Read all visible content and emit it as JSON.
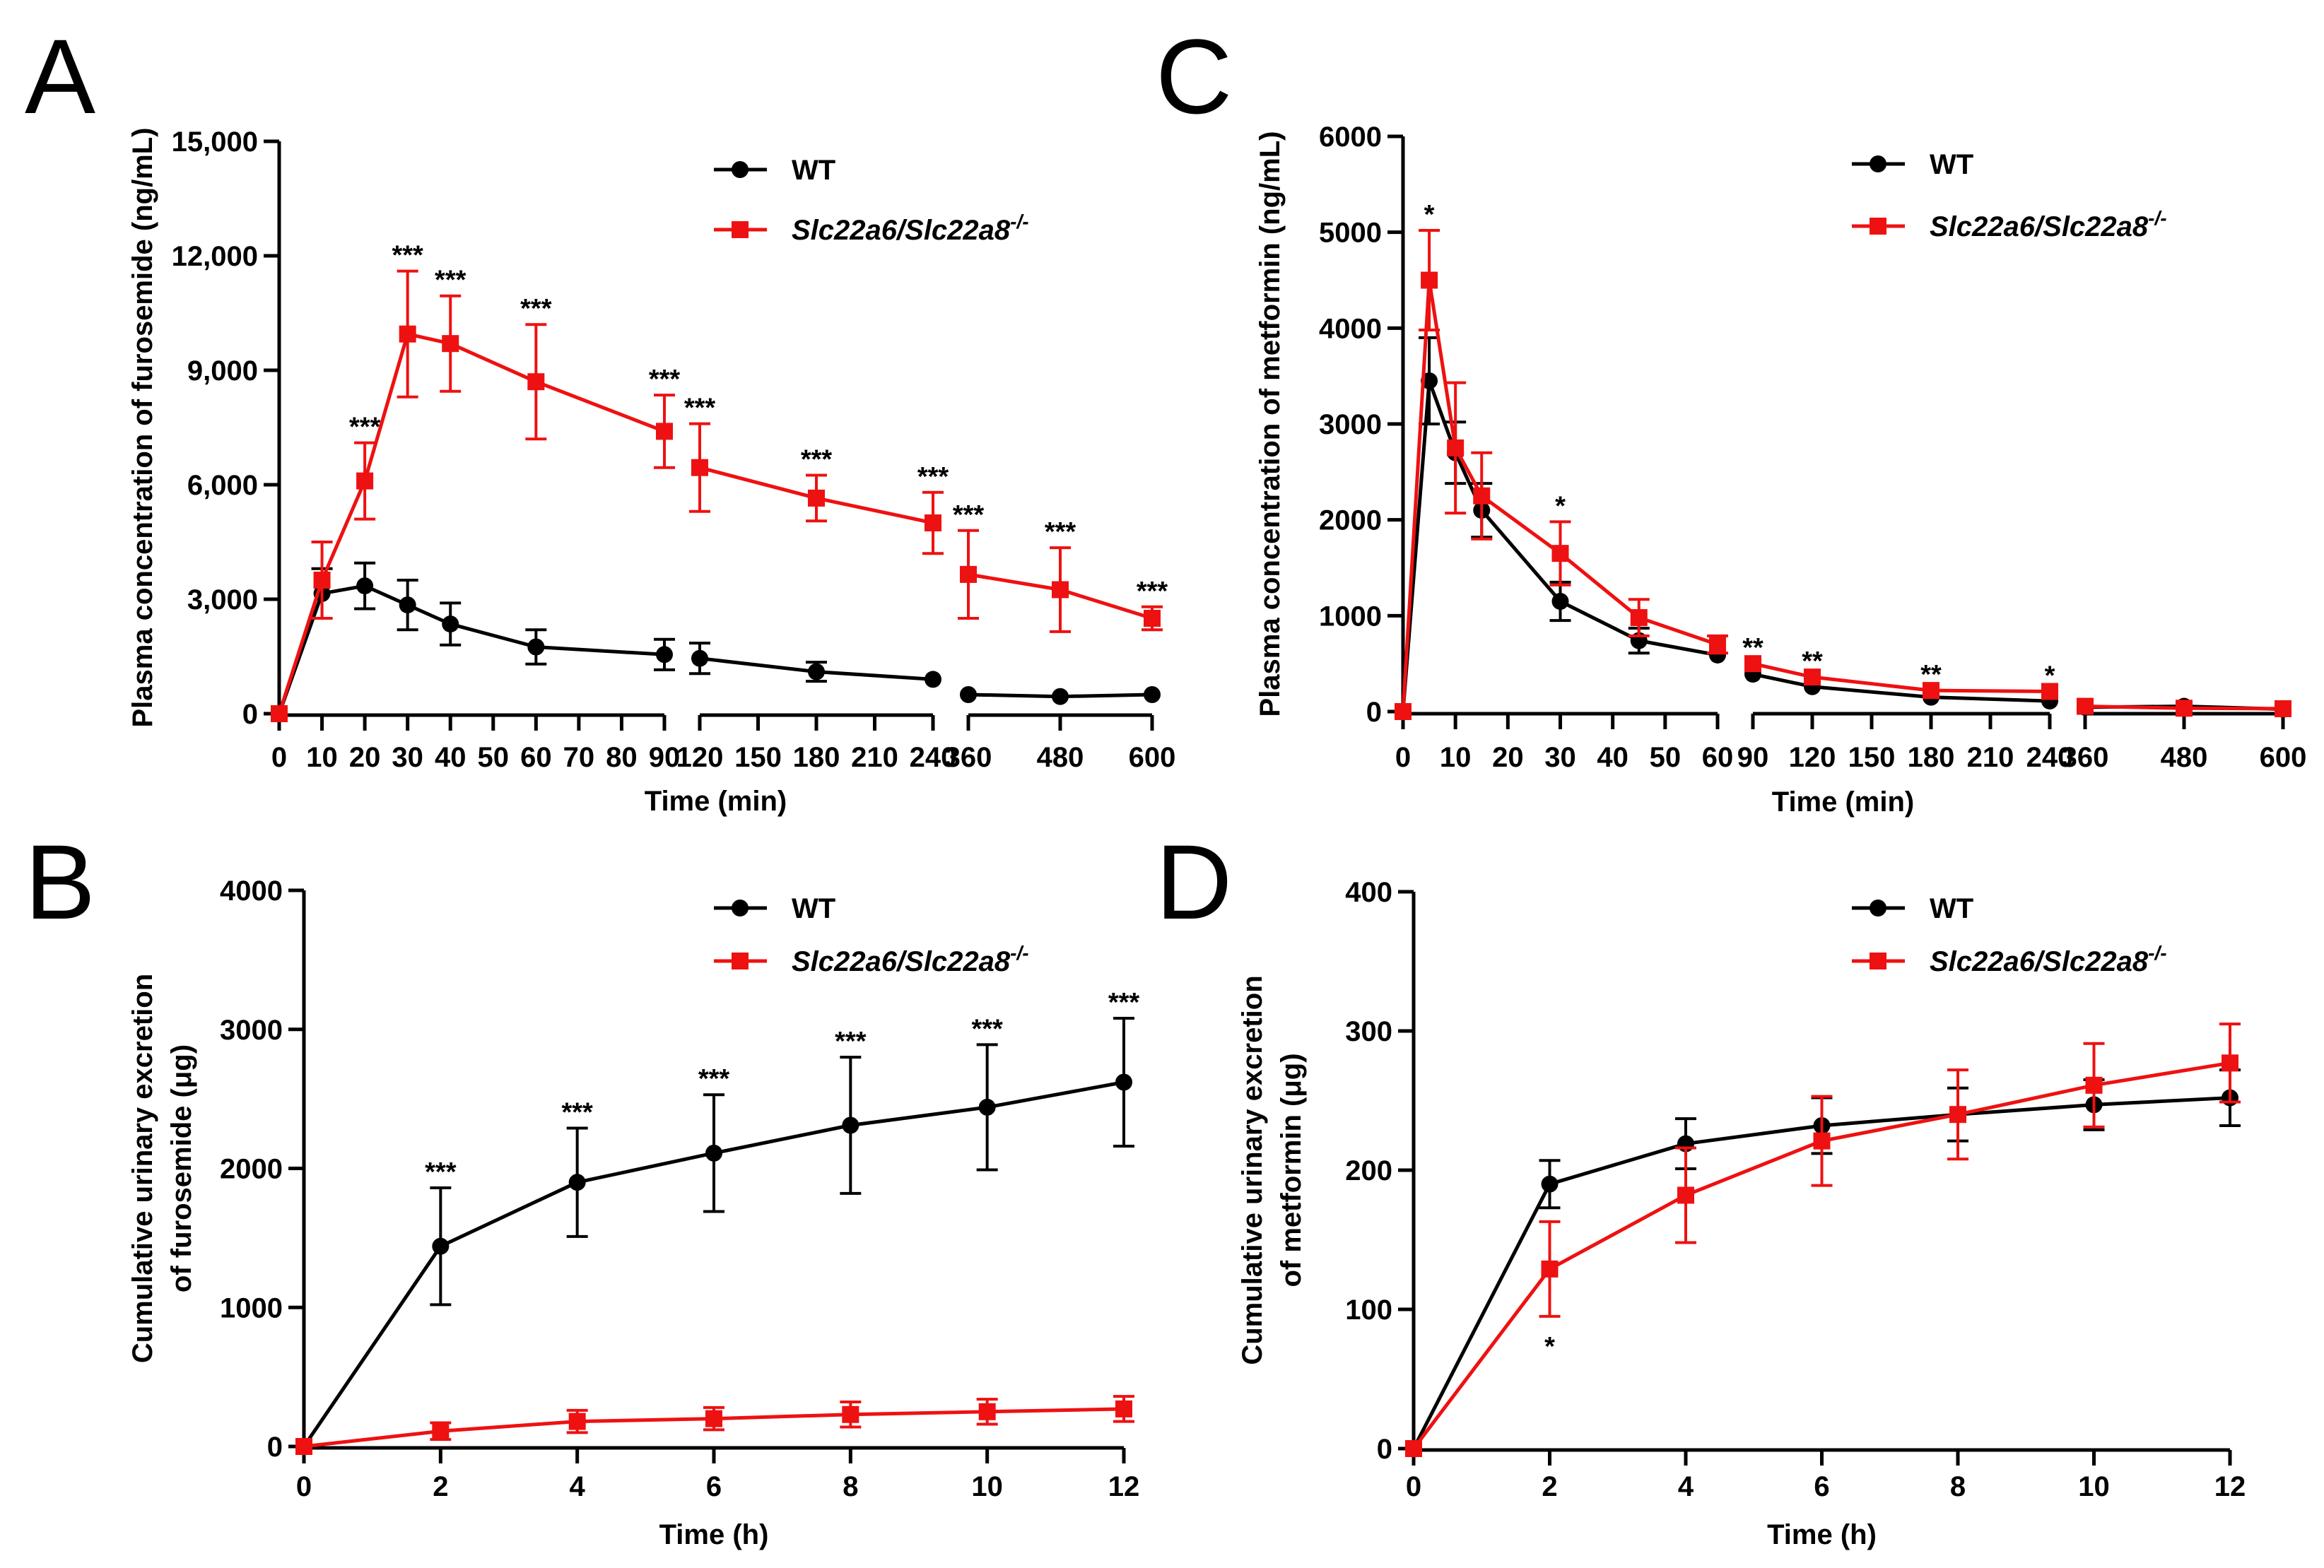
{
  "colors": {
    "wt": "#000000",
    "ko": "#ee1111",
    "axis": "#000000"
  },
  "chart_data": [
    {
      "panel": "A",
      "type": "line",
      "xlabel": "Time (min)",
      "ylabel": "Plasma concentration of furosemide (ng/mL)",
      "ylim": [
        0,
        15000
      ],
      "ytick_labels": [
        "0",
        "3,000",
        "6,000",
        "9,000",
        "12,000",
        "15,000"
      ],
      "segments": [
        {
          "xlim": [
            0,
            90
          ],
          "tick_labels": [
            "0",
            "10",
            "20",
            "30",
            "40",
            "50",
            "60",
            "70",
            "80",
            "90"
          ]
        },
        {
          "xlim": [
            120,
            240
          ],
          "tick_labels": [
            "120",
            "150",
            "180",
            "210",
            "240"
          ]
        },
        {
          "xlim": [
            360,
            600
          ],
          "tick_labels": [
            "360",
            "480",
            "600"
          ]
        }
      ],
      "legend": [
        "WT",
        "Slc22a6/Slc22a8",
        "-/-"
      ],
      "series": [
        {
          "name": "WT",
          "color_key": "wt",
          "marker": "circle",
          "x": [
            0,
            10,
            20,
            30,
            40,
            60,
            90,
            120,
            180,
            240,
            360,
            480,
            600
          ],
          "values": [
            0,
            3150,
            3350,
            2850,
            2350,
            1750,
            1550,
            1450,
            1100,
            900,
            500,
            450,
            500
          ],
          "err": [
            0,
            650,
            600,
            650,
            550,
            450,
            400,
            400,
            250,
            0,
            0,
            0,
            0
          ]
        },
        {
          "name": "Slc22a6/Slc22a8-/-",
          "color_key": "ko",
          "marker": "square",
          "x": [
            0,
            10,
            20,
            30,
            40,
            60,
            90,
            120,
            180,
            240,
            360,
            480,
            600
          ],
          "values": [
            0,
            3500,
            6100,
            9950,
            9700,
            8700,
            7400,
            6450,
            5650,
            5000,
            3650,
            3250,
            2500
          ],
          "err": [
            0,
            1000,
            1000,
            1650,
            1250,
            1500,
            950,
            1150,
            600,
            800,
            1150,
            1100,
            300
          ]
        }
      ],
      "annotations": [
        {
          "x": 20,
          "text": "***"
        },
        {
          "x": 30,
          "text": "***"
        },
        {
          "x": 40,
          "text": "***"
        },
        {
          "x": 60,
          "text": "***"
        },
        {
          "x": 90,
          "text": "***"
        },
        {
          "x": 120,
          "text": "***"
        },
        {
          "x": 180,
          "text": "***"
        },
        {
          "x": 240,
          "text": "***"
        },
        {
          "x": 360,
          "text": "***"
        },
        {
          "x": 480,
          "text": "***"
        },
        {
          "x": 600,
          "text": "***"
        }
      ]
    },
    {
      "panel": "B",
      "type": "line",
      "xlabel": "Time (h)",
      "ylabel_lines": [
        "Cumulative urinary excretion",
        "of furosemide (μg)"
      ],
      "ylim": [
        0,
        4000
      ],
      "ytick_labels": [
        "0",
        "1000",
        "2000",
        "3000",
        "4000"
      ],
      "segments": [
        {
          "xlim": [
            0,
            12
          ],
          "tick_labels": [
            "0",
            "2",
            "4",
            "6",
            "8",
            "10",
            "12"
          ]
        }
      ],
      "legend": [
        "WT",
        "Slc22a6/Slc22a8",
        "-/-"
      ],
      "series": [
        {
          "name": "WT",
          "color_key": "wt",
          "marker": "circle",
          "x": [
            0,
            2,
            4,
            6,
            8,
            10,
            12
          ],
          "values": [
            0,
            1440,
            1900,
            2110,
            2310,
            2440,
            2620
          ],
          "err": [
            0,
            420,
            390,
            420,
            490,
            450,
            460
          ]
        },
        {
          "name": "Slc22a6/Slc22a8-/-",
          "color_key": "ko",
          "marker": "square",
          "x": [
            0,
            2,
            4,
            6,
            8,
            10,
            12
          ],
          "values": [
            0,
            110,
            180,
            200,
            230,
            250,
            270
          ],
          "err": [
            0,
            60,
            80,
            80,
            90,
            90,
            90
          ]
        }
      ],
      "annotations": [
        {
          "x": 2,
          "text": "***"
        },
        {
          "x": 4,
          "text": "***"
        },
        {
          "x": 6,
          "text": "***"
        },
        {
          "x": 8,
          "text": "***"
        },
        {
          "x": 10,
          "text": "***"
        },
        {
          "x": 12,
          "text": "***"
        }
      ]
    },
    {
      "panel": "C",
      "type": "line",
      "xlabel": "Time (min)",
      "ylabel": "Plasma concentration of metformin (ng/mL)",
      "ylim": [
        0,
        6000
      ],
      "ytick_labels": [
        "0",
        "1000",
        "2000",
        "3000",
        "4000",
        "5000",
        "6000"
      ],
      "segments": [
        {
          "xlim": [
            0,
            60
          ],
          "tick_labels": [
            "0",
            "10",
            "20",
            "30",
            "40",
            "50",
            "60"
          ]
        },
        {
          "xlim": [
            90,
            240
          ],
          "tick_labels": [
            "90",
            "120",
            "150",
            "180",
            "210",
            "240"
          ]
        },
        {
          "xlim": [
            360,
            600
          ],
          "tick_labels": [
            "360",
            "480",
            "600"
          ]
        }
      ],
      "legend": [
        "WT",
        "Slc22a6/Slc22a8",
        "-/-"
      ],
      "series": [
        {
          "name": "WT",
          "color_key": "wt",
          "marker": "circle",
          "x": [
            0,
            5,
            10,
            15,
            30,
            45,
            60,
            90,
            120,
            180,
            240,
            360,
            480,
            600
          ],
          "values": [
            0,
            3450,
            2700,
            2100,
            1150,
            740,
            590,
            390,
            260,
            150,
            110,
            45,
            55,
            25
          ],
          "err": [
            0,
            450,
            320,
            280,
            200,
            130,
            0,
            0,
            0,
            0,
            0,
            0,
            0,
            0
          ]
        },
        {
          "name": "Slc22a6/Slc22a8-/-",
          "color_key": "ko",
          "marker": "square",
          "x": [
            0,
            5,
            10,
            15,
            30,
            45,
            60,
            90,
            120,
            180,
            240,
            360,
            480,
            600
          ],
          "values": [
            0,
            4500,
            2750,
            2250,
            1650,
            980,
            700,
            500,
            360,
            220,
            210,
            55,
            35,
            30
          ],
          "err": [
            0,
            520,
            680,
            450,
            330,
            190,
            90,
            0,
            0,
            0,
            0,
            0,
            0,
            0
          ]
        }
      ],
      "annotations": [
        {
          "x": 5,
          "text": "*"
        },
        {
          "x": 30,
          "text": "*"
        },
        {
          "x": 90,
          "text": "**"
        },
        {
          "x": 120,
          "text": "**"
        },
        {
          "x": 180,
          "text": "**"
        },
        {
          "x": 240,
          "text": "*"
        }
      ]
    },
    {
      "panel": "D",
      "type": "line",
      "xlabel": "Time (h)",
      "ylabel_lines": [
        "Cumulative urinary excretion",
        "of metformin (μg)"
      ],
      "ylim": [
        0,
        400
      ],
      "ytick_labels": [
        "0",
        "100",
        "200",
        "300",
        "400"
      ],
      "segments": [
        {
          "xlim": [
            0,
            12
          ],
          "tick_labels": [
            "0",
            "2",
            "4",
            "6",
            "8",
            "10",
            "12"
          ]
        }
      ],
      "legend": [
        "WT",
        "Slc22a6/Slc22a8",
        "-/-"
      ],
      "series": [
        {
          "name": "WT",
          "color_key": "wt",
          "marker": "circle",
          "x": [
            0,
            2,
            4,
            6,
            8,
            10,
            12
          ],
          "values": [
            0,
            190,
            219,
            232,
            240,
            247,
            252
          ],
          "err": [
            0,
            17,
            18,
            20,
            19,
            18,
            20
          ]
        },
        {
          "name": "Slc22a6/Slc22a8-/-",
          "color_key": "ko",
          "marker": "square",
          "x": [
            0,
            2,
            4,
            6,
            8,
            10,
            12
          ],
          "values": [
            0,
            129,
            182,
            221,
            240,
            261,
            277
          ],
          "err": [
            0,
            34,
            34,
            32,
            32,
            30,
            28
          ]
        }
      ],
      "annotations": [
        {
          "x": 2,
          "text": "*",
          "below": true
        }
      ]
    }
  ]
}
